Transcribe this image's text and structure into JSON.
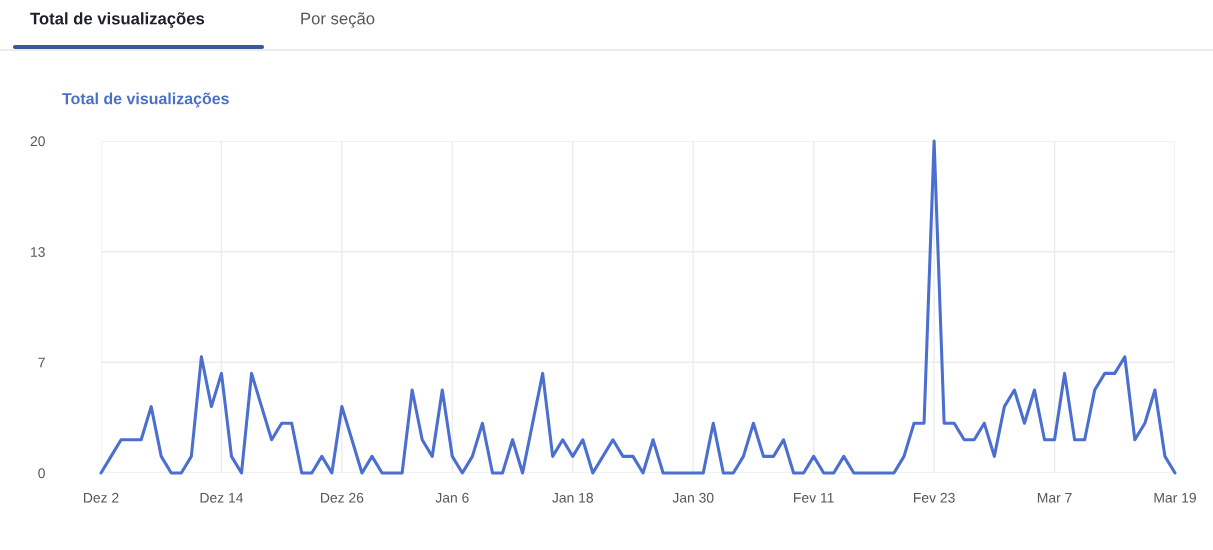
{
  "chart_data": {
    "type": "line",
    "title": "Total de visualizações",
    "annotations": [
      "Total de visualizações",
      "Por seção"
    ],
    "categories": [
      "Dez 2",
      null,
      null,
      null,
      null,
      null,
      null,
      null,
      null,
      null,
      null,
      null,
      "Dez 14",
      null,
      null,
      null,
      null,
      null,
      null,
      null,
      null,
      null,
      null,
      null,
      "Dez 26",
      null,
      null,
      null,
      null,
      null,
      null,
      null,
      null,
      null,
      null,
      "Jan 6",
      null,
      null,
      null,
      null,
      null,
      null,
      null,
      null,
      null,
      null,
      null,
      "Jan 18",
      null,
      null,
      null,
      null,
      null,
      null,
      null,
      null,
      null,
      null,
      null,
      "Jan 30",
      null,
      null,
      null,
      null,
      null,
      null,
      null,
      null,
      null,
      null,
      null,
      "Fev 11",
      null,
      null,
      null,
      null,
      null,
      null,
      null,
      null,
      null,
      null,
      null,
      "Fev 23",
      null,
      null,
      null,
      null,
      null,
      null,
      null,
      null,
      null,
      null,
      null,
      "Mar 7",
      null,
      null,
      null,
      null,
      null,
      null,
      null,
      null,
      null,
      null,
      null,
      "Mar 19"
    ],
    "series": [
      {
        "color": "#4b6fd0",
        "values": [
          0,
          1,
          2,
          2,
          2,
          4,
          1,
          0,
          0,
          1,
          7,
          4,
          6,
          1,
          0,
          6,
          4,
          2,
          3,
          3,
          0,
          0,
          1,
          0,
          4,
          2,
          0,
          1,
          0,
          0,
          0,
          5,
          2,
          1,
          5,
          1,
          0,
          1,
          3,
          0,
          0,
          2,
          0,
          3,
          6,
          1,
          2,
          1,
          2,
          0,
          1,
          2,
          1,
          1,
          0,
          2,
          0,
          0,
          0,
          0,
          0,
          3,
          0,
          0,
          1,
          3,
          1,
          1,
          2,
          0,
          0,
          1,
          0,
          0,
          1,
          0,
          0,
          0,
          0,
          0,
          1,
          3,
          3,
          20,
          3,
          3,
          2,
          2,
          3,
          1,
          4,
          5,
          3,
          5,
          2,
          2,
          6,
          2,
          2,
          5,
          6,
          6,
          7,
          2,
          3,
          5,
          1,
          0
        ]
      }
    ],
    "ylim": [
      0,
      20
    ],
    "yticks": [
      0,
      {
        "value": 6.67,
        "label": "7"
      },
      {
        "value": 13.33,
        "label": "13"
      },
      20
    ],
    "grid": true,
    "marker": "none",
    "line_style": "solid"
  }
}
